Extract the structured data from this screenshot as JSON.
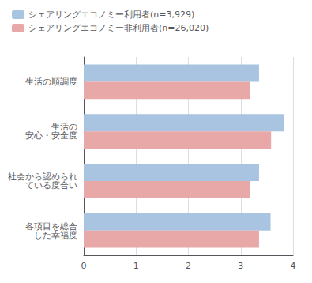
{
  "chart_data": {
    "type": "bar",
    "orientation": "horizontal",
    "categories": [
      "生活の順調度",
      "生活の\n安心・安全度",
      "社会から認められ\nている度合い",
      "各項目を総合\nした幸福度"
    ],
    "series": [
      {
        "name": "シェアリングエコノミー利用者(n=3,929)",
        "color": "#a8c4e0",
        "values": [
          3.35,
          3.82,
          3.35,
          3.57
        ]
      },
      {
        "name": "シェアリングエコノミー非利用者(n=26,020)",
        "color": "#e8a8a8",
        "values": [
          3.18,
          3.58,
          3.18,
          3.35
        ]
      }
    ],
    "xlim": [
      0.0,
      4.0
    ],
    "xticks": [
      0.0,
      1.0,
      2.0,
      3.0,
      4.0
    ],
    "grid": true,
    "legend": "upper left"
  }
}
